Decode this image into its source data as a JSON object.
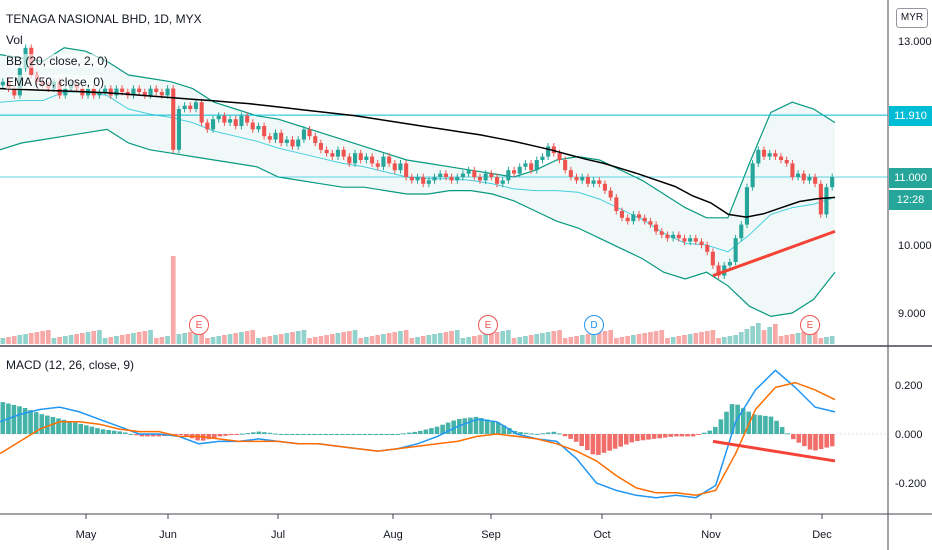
{
  "header": {
    "symbol_line": "TENAGA NASIONAL BHD, 1D, MYX",
    "vol_label": "Vol",
    "bb_label": "BB (20, close, 2, 0)",
    "ema_label": "EMA (50, close, 0)",
    "macd_label": "MACD (12, 26, close, 9)",
    "currency": "MYR"
  },
  "price_tags": {
    "last_price": "11.000",
    "countdown": "12:28",
    "level_line": "11.910"
  },
  "events": [
    {
      "letter": "E",
      "type": "earnings"
    },
    {
      "letter": "E",
      "type": "earnings"
    },
    {
      "letter": "D",
      "type": "dividend"
    },
    {
      "letter": "E",
      "type": "earnings"
    }
  ],
  "colors": {
    "up": "#26a69a",
    "down": "#ef5350",
    "ema": "#000000",
    "bb_basis": "#00bcd4",
    "bb_band": "#089981",
    "macd": "#2196f3",
    "signal": "#ff6d00",
    "level_line": "#00bcd4",
    "trendline": "#f44336"
  },
  "chart_data": {
    "type": "candlestick",
    "x_ticks": [
      "May",
      "Jun",
      "Jul",
      "Aug",
      "Sep",
      "Oct",
      "Nov",
      "Dec"
    ],
    "price_axis": {
      "ticks": [
        "13.000",
        "11.910",
        "11.000",
        "10.000",
        "9.000"
      ],
      "range": [
        8.6,
        13.3
      ]
    },
    "macd_axis": {
      "ticks": [
        "0.200",
        "0.000",
        "-0.200"
      ],
      "range": [
        -0.3,
        0.27
      ]
    },
    "price_close": [
      12.4,
      12.3,
      12.2,
      12.6,
      12.9,
      12.5,
      12.4,
      12.35,
      12.3,
      12.4,
      12.2,
      12.3,
      12.35,
      12.3,
      12.2,
      12.3,
      12.2,
      12.25,
      12.3,
      12.2,
      12.3,
      12.25,
      12.2,
      12.3,
      12.25,
      12.2,
      12.3,
      12.25,
      12.2,
      12.3,
      11.4,
      12.0,
      12.05,
      12.0,
      12.1,
      11.8,
      11.7,
      11.85,
      11.9,
      11.8,
      11.85,
      11.75,
      11.9,
      11.8,
      11.7,
      11.75,
      11.6,
      11.55,
      11.65,
      11.5,
      11.55,
      11.45,
      11.55,
      11.7,
      11.6,
      11.5,
      11.4,
      11.35,
      11.3,
      11.4,
      11.3,
      11.2,
      11.35,
      11.25,
      11.3,
      11.2,
      11.15,
      11.3,
      11.2,
      11.1,
      11.2,
      11.0,
      10.95,
      11.0,
      10.9,
      10.95,
      11.0,
      11.05,
      11.0,
      10.95,
      11.0,
      11.05,
      11.1,
      11.0,
      10.95,
      11.05,
      11.0,
      10.9,
      10.95,
      11.1,
      11.05,
      11.15,
      11.2,
      11.1,
      11.25,
      11.3,
      11.45,
      11.35,
      11.25,
      11.1,
      11.0,
      10.95,
      11.0,
      10.9,
      10.95,
      10.9,
      10.8,
      10.7,
      10.5,
      10.4,
      10.35,
      10.45,
      10.4,
      10.35,
      10.3,
      10.2,
      10.15,
      10.1,
      10.15,
      10.1,
      10.05,
      10.1,
      10.05,
      10.0,
      9.9,
      9.7,
      9.55,
      9.7,
      9.75,
      10.1,
      10.3,
      10.85,
      11.2,
      11.4,
      11.3,
      11.35,
      11.3,
      11.25,
      11.2,
      11.0,
      11.05,
      10.95,
      11.0,
      10.9,
      10.45,
      10.85,
      11.0
    ],
    "ema50": [
      12.3,
      12.29,
      12.28,
      12.27,
      12.26,
      12.25,
      12.24,
      12.22,
      12.2,
      12.18,
      12.16,
      12.14,
      12.12,
      12.1,
      12.08,
      12.05,
      12.02,
      11.99,
      11.96,
      11.93,
      11.9,
      11.86,
      11.82,
      11.78,
      11.74,
      11.7,
      11.66,
      11.62,
      11.57,
      11.52,
      11.46,
      11.4,
      11.33,
      11.26,
      11.2,
      11.12,
      11.04,
      10.95,
      10.86,
      10.72,
      10.62,
      10.45,
      10.41,
      10.46,
      10.55,
      10.64,
      10.68,
      10.7
    ],
    "bb_upper": [
      12.8,
      12.75,
      12.7,
      12.9,
      12.85,
      12.7,
      12.5,
      12.45,
      12.4,
      12.3,
      12.1,
      12.0,
      11.9,
      11.85,
      11.75,
      11.65,
      11.55,
      11.45,
      11.35,
      11.25,
      11.2,
      11.15,
      11.1,
      11.05,
      11.0,
      11.1,
      11.25,
      11.3,
      11.25,
      11.1,
      10.95,
      10.75,
      10.55,
      10.4,
      10.4,
      11.2,
      11.95,
      12.1,
      12.0,
      11.8
    ],
    "bb_lower": [
      11.4,
      11.5,
      11.55,
      11.6,
      11.65,
      11.7,
      11.5,
      11.4,
      11.35,
      11.3,
      11.25,
      11.2,
      11.15,
      11.0,
      10.95,
      10.9,
      10.85,
      10.85,
      10.8,
      10.75,
      10.75,
      10.8,
      10.8,
      10.75,
      10.65,
      10.5,
      10.35,
      10.25,
      10.1,
      9.95,
      9.8,
      9.6,
      9.5,
      9.6,
      9.4,
      9.1,
      8.95,
      9.0,
      9.2,
      9.6
    ],
    "macd": [
      0.05,
      0.08,
      0.1,
      0.11,
      0.09,
      0.06,
      0.03,
      0.0,
      0.0,
      -0.01,
      -0.04,
      -0.03,
      -0.03,
      -0.02,
      -0.03,
      -0.04,
      -0.04,
      -0.05,
      -0.06,
      -0.07,
      -0.06,
      -0.04,
      -0.01,
      0.03,
      0.06,
      0.05,
      0.0,
      -0.02,
      -0.03,
      -0.1,
      -0.2,
      -0.23,
      -0.25,
      -0.26,
      -0.25,
      -0.26,
      -0.21,
      0.05,
      0.18,
      0.26,
      0.19,
      0.11,
      0.09
    ],
    "signal": [
      -0.08,
      -0.03,
      0.02,
      0.05,
      0.05,
      0.04,
      0.02,
      0.01,
      0.01,
      -0.01,
      -0.01,
      -0.02,
      -0.03,
      -0.03,
      -0.03,
      -0.04,
      -0.04,
      -0.05,
      -0.06,
      -0.07,
      -0.06,
      -0.05,
      -0.04,
      -0.03,
      -0.01,
      0.0,
      -0.01,
      -0.02,
      -0.04,
      -0.07,
      -0.11,
      -0.17,
      -0.22,
      -0.24,
      -0.24,
      -0.25,
      -0.23,
      -0.08,
      0.1,
      0.19,
      0.21,
      0.18,
      0.14
    ]
  }
}
